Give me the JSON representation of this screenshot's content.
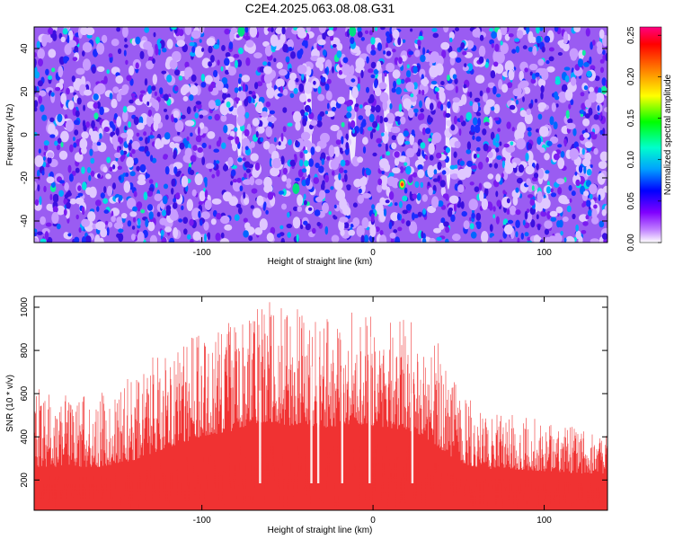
{
  "chart_data": [
    {
      "type": "heatmap",
      "title": "C2E4.2025.063.08.08.G31",
      "xlabel": "Height of straight line (km)",
      "ylabel": "Frequency (Hz)",
      "xlim": [
        -198,
        137
      ],
      "ylim": [
        -50,
        50
      ],
      "x_ticks": [
        -100,
        0,
        100
      ],
      "y_ticks": [
        -40,
        -20,
        0,
        20,
        40
      ],
      "colorbar": {
        "label": "Normalized spectral amplitude",
        "range": [
          0,
          0.26
        ],
        "ticks": [
          "0.00",
          "0.05",
          "0.10",
          "0.15",
          "0.20",
          "0.25"
        ],
        "colors": [
          "#ffffff",
          "#c080ff",
          "#8000ff",
          "#0000ff",
          "#00a0ff",
          "#00ffcc",
          "#00ff00",
          "#ffff00",
          "#ff8000",
          "#ff0000",
          "#ff0080"
        ]
      },
      "vertical_gaps_km": [
        -78,
        -38,
        -12,
        8,
        44
      ],
      "hot_spots": [
        {
          "x_km": 17,
          "freq_hz": -23,
          "amplitude": 0.22
        },
        {
          "x_km": -77,
          "freq_hz": 48,
          "amplitude": 0.12
        },
        {
          "x_km": -45,
          "freq_hz": -25,
          "amplitude": 0.14
        },
        {
          "x_km": -12,
          "freq_hz": 48,
          "amplitude": 0.12
        }
      ]
    },
    {
      "type": "area",
      "xlabel": "Height of straight line (km)",
      "ylabel": "SNR (10 * v/v)",
      "xlim": [
        -198,
        137
      ],
      "ylim": [
        60,
        1050
      ],
      "x_ticks": [
        -100,
        0,
        100
      ],
      "y_ticks": [
        200,
        400,
        600,
        800,
        1000
      ],
      "color": "#f03232",
      "envelope": {
        "x": [
          -198,
          -180,
          -160,
          -140,
          -120,
          -100,
          -80,
          -70,
          -60,
          -50,
          -40,
          -30,
          -20,
          -10,
          0,
          10,
          20,
          30,
          40,
          50,
          60,
          70,
          80,
          100,
          120,
          137
        ],
        "peak": [
          650,
          600,
          600,
          700,
          820,
          900,
          950,
          1000,
          1040,
          980,
          1000,
          940,
          960,
          980,
          990,
          950,
          940,
          900,
          820,
          620,
          550,
          500,
          520,
          470,
          440,
          420
        ],
        "base": [
          260,
          260,
          260,
          290,
          350,
          400,
          430,
          460,
          470,
          450,
          460,
          440,
          450,
          460,
          450,
          440,
          430,
          400,
          340,
          280,
          260,
          250,
          250,
          240,
          230,
          230
        ]
      },
      "dropouts_km": [
        -66,
        -36,
        -32,
        -18,
        -2,
        23
      ]
    }
  ]
}
